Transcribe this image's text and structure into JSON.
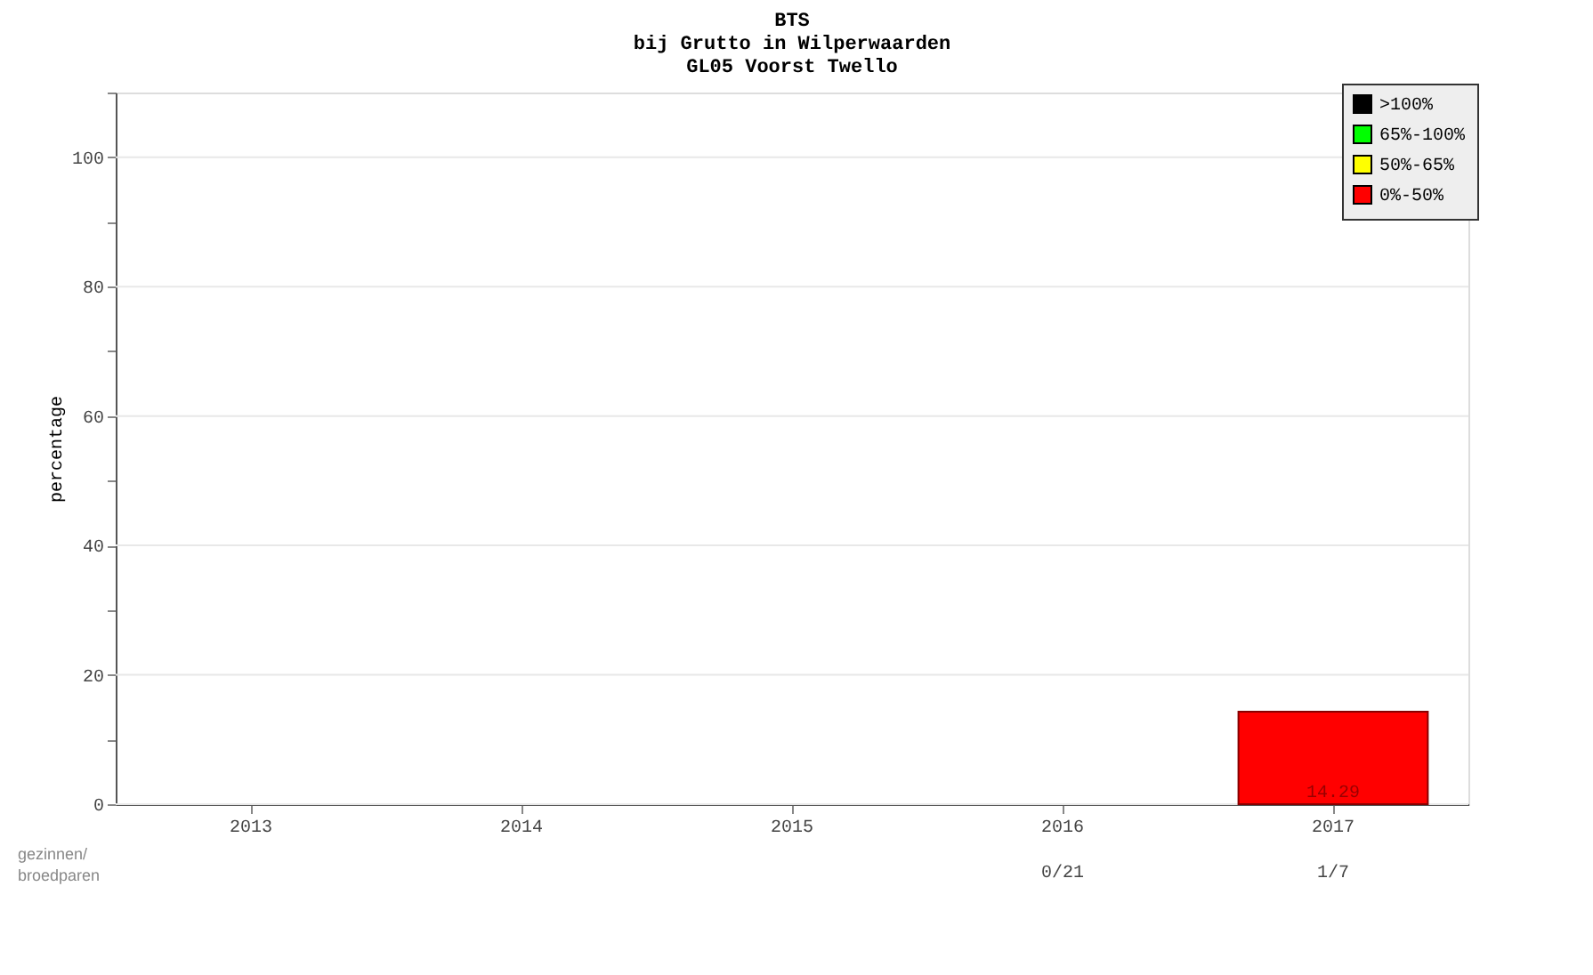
{
  "chart_data": {
    "type": "bar",
    "title": [
      "BTS",
      "bij Grutto in Wilperwaarden",
      "GL05 Voorst Twello"
    ],
    "ylabel": "percentage",
    "categories": [
      "2013",
      "2014",
      "2015",
      "2016",
      "2017"
    ],
    "series": [
      {
        "name": ">100%",
        "color": "#000000",
        "values": [
          null,
          null,
          null,
          null,
          null
        ]
      },
      {
        "name": "65%-100%",
        "color": "#00ff00",
        "values": [
          null,
          null,
          null,
          null,
          null
        ]
      },
      {
        "name": "50%-65%",
        "color": "#ffff00",
        "values": [
          null,
          null,
          null,
          null,
          null
        ]
      },
      {
        "name": "0%-50%",
        "color": "#ff0000",
        "values": [
          null,
          null,
          null,
          null,
          14.29
        ],
        "value_labels": [
          null,
          null,
          null,
          null,
          "14.29"
        ]
      }
    ],
    "ylim": [
      0,
      110
    ],
    "yticks": [
      0,
      {
        "value": 10,
        "label": null
      },
      20,
      {
        "value": 30,
        "label": null
      },
      40,
      {
        "value": 50,
        "label": null
      },
      60,
      {
        "value": 70,
        "label": null
      },
      80,
      {
        "value": 90,
        "label": null
      },
      100,
      {
        "value": 110,
        "label": null
      }
    ],
    "grid": "y",
    "legend": "top right",
    "annotations": [
      "gezinnen/ broedparen",
      "0/21",
      "1/7"
    ]
  }
}
